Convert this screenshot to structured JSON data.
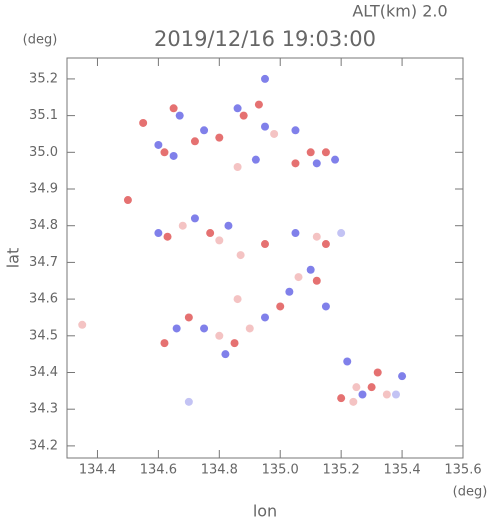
{
  "chart_data": {
    "type": "scatter",
    "title": "2019/12/16 19:03:00",
    "subtitle": "ALT(km)  2.0",
    "x_label": "lon",
    "y_label": "lat",
    "x_unit": "(deg)",
    "y_unit": "(deg)",
    "xlim": [
      134.3,
      135.6
    ],
    "ylim": [
      34.167,
      35.257
    ],
    "xticks": [
      134.4,
      134.6,
      134.8,
      {
        "value": 135,
        "label": "135.0"
      },
      135.2,
      135.4,
      {
        "value": 135.6,
        "label": "135.6"
      }
    ],
    "yticks": [
      34.2,
      34.3,
      34.4,
      34.5,
      34.6,
      34.7,
      34.8,
      34.9,
      {
        "value": 35,
        "label": "35.0"
      },
      35.1,
      35.2
    ],
    "x": [
      134.95,
      134.55,
      134.65,
      134.67,
      134.72,
      134.75,
      134.8,
      134.86,
      134.88,
      134.93,
      134.95,
      134.98,
      135.05,
      135.1,
      135.12,
      135.05,
      134.92,
      134.86,
      134.62,
      134.65,
      134.6,
      135.15,
      135.18,
      134.5,
      134.6,
      134.63,
      134.68,
      134.72,
      134.77,
      134.8,
      134.83,
      134.87,
      134.95,
      135.05,
      135.12,
      135.15,
      135.2,
      134.35,
      134.62,
      134.66,
      134.7,
      134.75,
      134.8,
      134.85,
      134.9,
      134.95,
      135.0,
      135.03,
      135.06,
      135.1,
      135.12,
      135.15,
      134.86,
      134.82,
      134.7,
      135.22,
      135.2,
      135.24,
      135.27,
      135.3,
      135.32,
      135.35,
      135.4,
      135.38,
      135.25
    ],
    "y": [
      35.2,
      35.08,
      35.12,
      35.1,
      35.03,
      35.06,
      35.04,
      35.12,
      35.1,
      35.13,
      35.07,
      35.05,
      35.06,
      35.0,
      34.97,
      34.97,
      34.98,
      34.96,
      35.0,
      34.99,
      35.02,
      35.0,
      34.98,
      34.87,
      34.78,
      34.77,
      34.8,
      34.82,
      34.78,
      34.76,
      34.8,
      34.72,
      34.75,
      34.78,
      34.77,
      34.75,
      34.78,
      34.53,
      34.48,
      34.52,
      34.55,
      34.52,
      34.5,
      34.48,
      34.52,
      34.55,
      34.58,
      34.62,
      34.66,
      34.68,
      34.65,
      34.58,
      34.6,
      34.45,
      34.32,
      34.43,
      34.33,
      34.32,
      34.34,
      34.36,
      34.4,
      34.34,
      34.39,
      34.34,
      34.36
    ],
    "colors": [
      "#6a6ae6",
      "#e05858",
      "#e05858",
      "#6a6ae6",
      "#e05858",
      "#6a6ae6",
      "#e05858",
      "#6a6ae6",
      "#e05858",
      "#e05858",
      "#6a6ae6",
      "#f2b8b8",
      "#6a6ae6",
      "#e05858",
      "#6a6ae6",
      "#e05858",
      "#6a6ae6",
      "#f2b8b8",
      "#e05858",
      "#6a6ae6",
      "#6a6ae6",
      "#e05858",
      "#6a6ae6",
      "#e05858",
      "#6a6ae6",
      "#e05858",
      "#f2b8b8",
      "#6a6ae6",
      "#e05858",
      "#f2b8b8",
      "#6a6ae6",
      "#f2b8b8",
      "#e05858",
      "#6a6ae6",
      "#f2b8b8",
      "#e05858",
      "#b8b8f2",
      "#f2b8b8",
      "#e05858",
      "#6a6ae6",
      "#e05858",
      "#6a6ae6",
      "#f2b8b8",
      "#e05858",
      "#f2b8b8",
      "#6a6ae6",
      "#e05858",
      "#6a6ae6",
      "#f2b8b8",
      "#6a6ae6",
      "#e05858",
      "#6a6ae6",
      "#f2b8b8",
      "#6a6ae6",
      "#b8b8f2",
      "#6a6ae6",
      "#e05858",
      "#f2b8b8",
      "#6a6ae6",
      "#e05858",
      "#e05858",
      "#f2b8b8",
      "#6a6ae6",
      "#b8b8f2",
      "#f2b8b8"
    ]
  }
}
